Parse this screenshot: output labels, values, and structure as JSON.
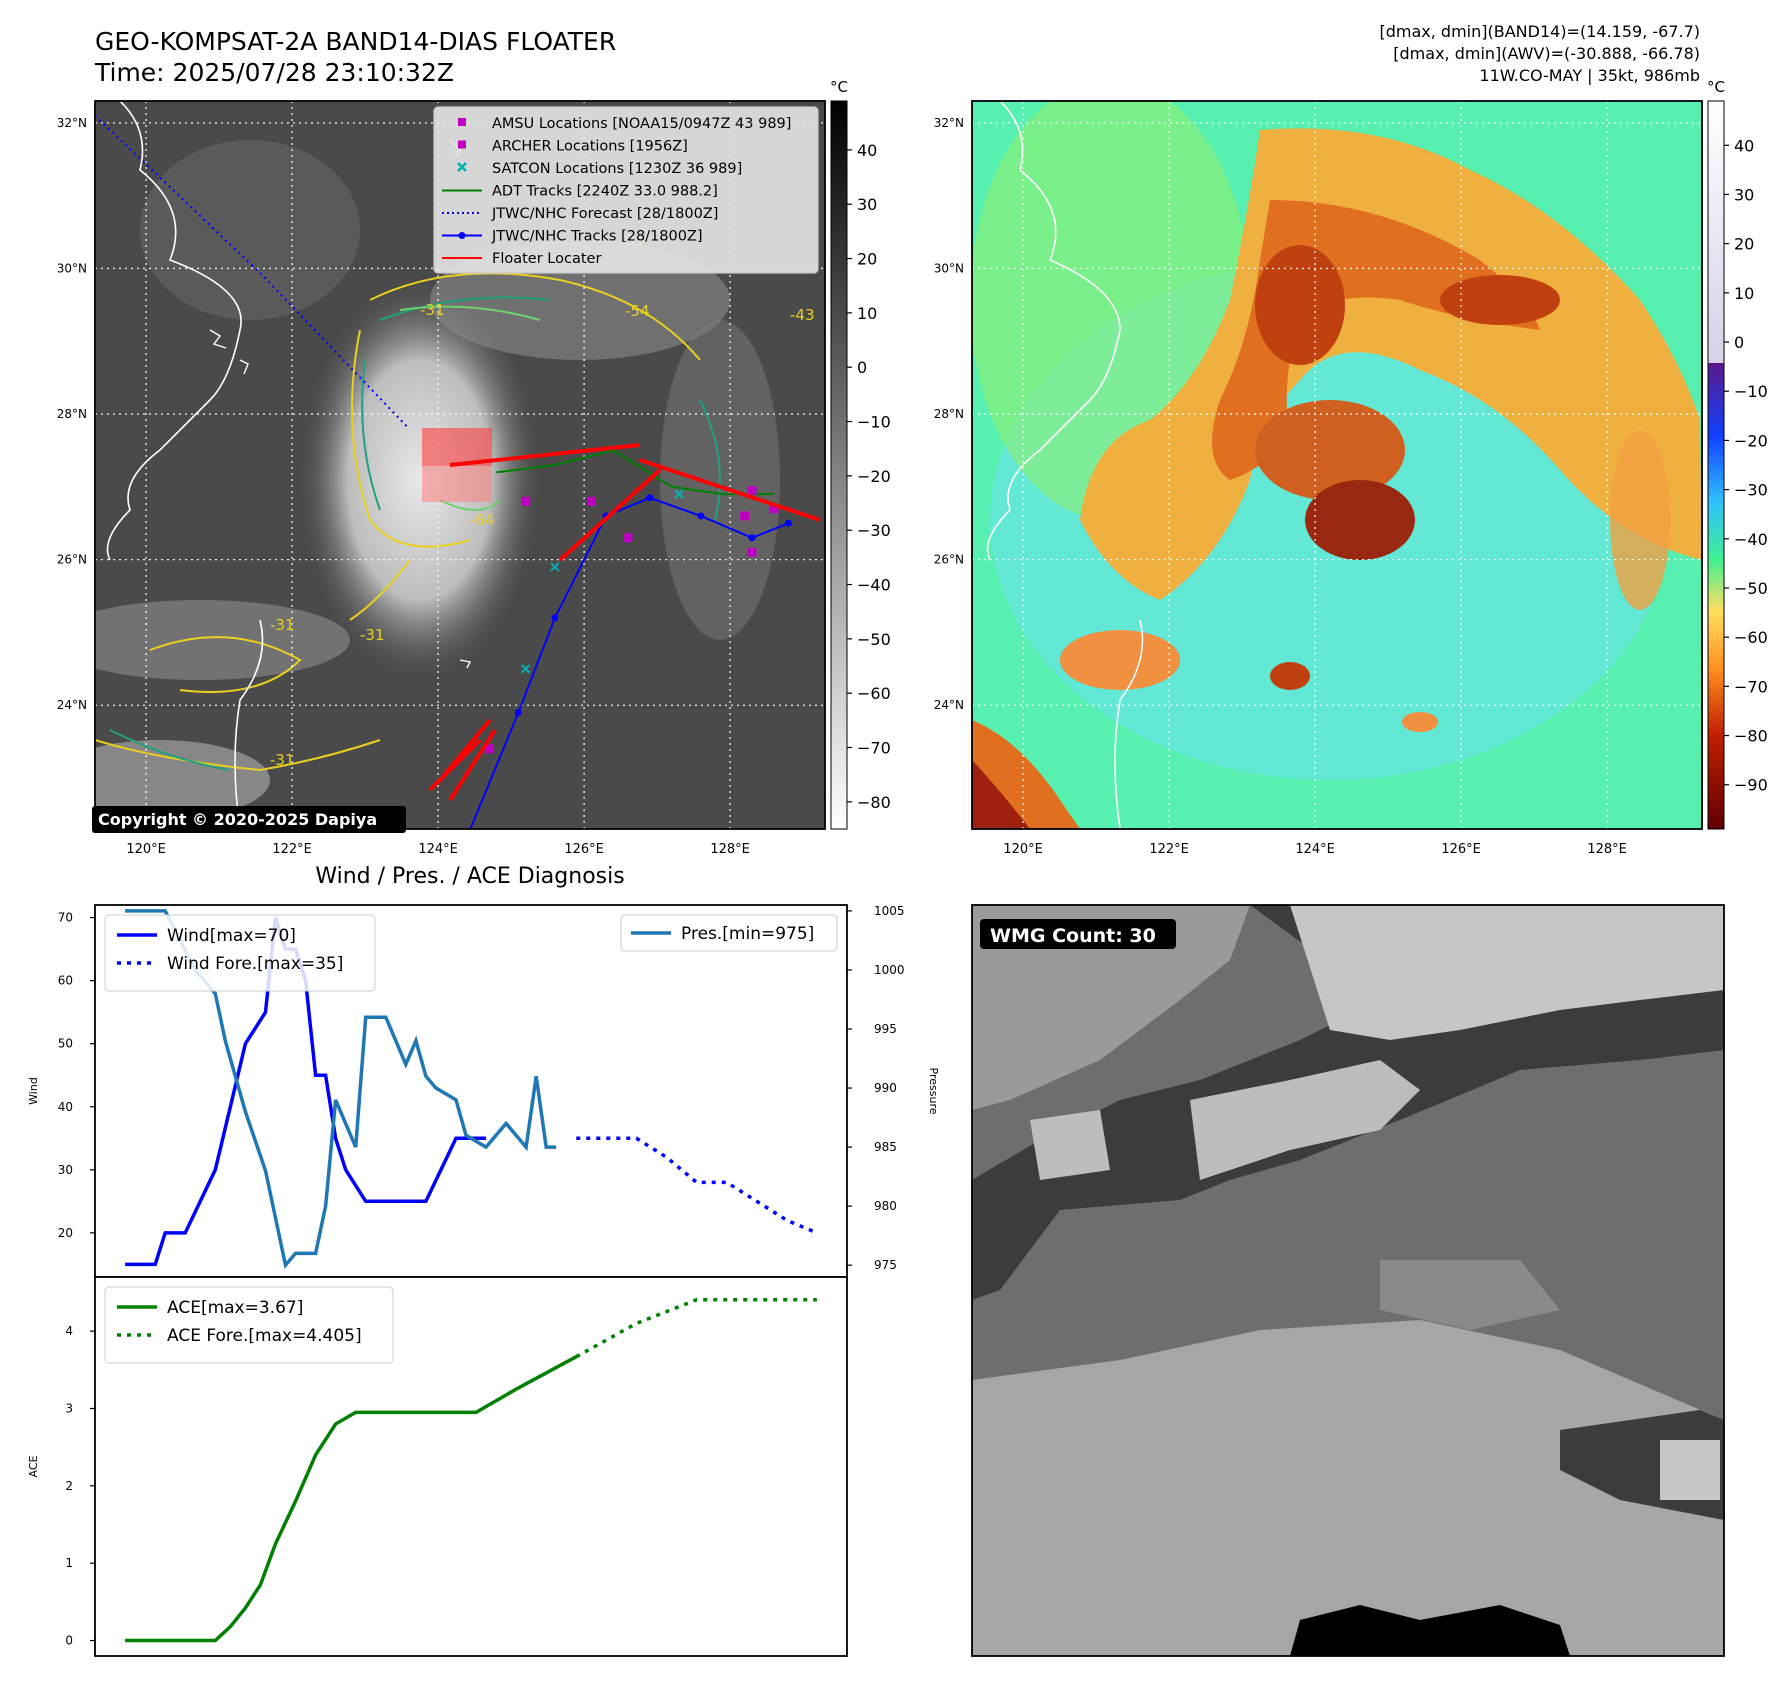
{
  "header": {
    "title_line1": "GEO-KOMPSAT-2A BAND14-DIAS FLOATER",
    "title_line2": "Time: 2025/07/28 23:10:32Z",
    "info_line1": "[dmax, dmin](BAND14)=(14.159, -67.7)",
    "info_line2": "[dmax, dmin](AWV)=(-30.888, -66.78)",
    "info_line3": "11W.CO-MAY | 35kt, 986mb"
  },
  "map": {
    "lat_labels": [
      "32°N",
      "30°N",
      "28°N",
      "26°N",
      "24°N"
    ],
    "lon_labels": [
      "120°E",
      "122°E",
      "124°E",
      "126°E",
      "128°E"
    ],
    "lat_values": [
      32,
      30,
      28,
      26,
      24
    ],
    "lon_values": [
      120,
      122,
      124,
      126,
      128
    ],
    "lat_range": [
      22.3,
      32.3
    ],
    "lon_range": [
      119.3,
      129.3
    ],
    "copyright": "Copyright © 2020-2025 Dapiya",
    "contour_labels": [
      "-31",
      "-54",
      "-64",
      "-43"
    ],
    "legend": [
      {
        "label": "AMSU Locations [NOAA15/0947Z 43 989]",
        "kind": "square",
        "color": "#c000c0"
      },
      {
        "label": "ARCHER Locations [1956Z]",
        "kind": "square",
        "color": "#c000c0"
      },
      {
        "label": "SATCON Locations [1230Z 36 989]",
        "kind": "x",
        "color": "#00b0b0"
      },
      {
        "label": "ADT Tracks [2240Z 33.0 988.2]",
        "kind": "line",
        "color": "#008000"
      },
      {
        "label": "JTWC/NHC Forecast [28/1800Z]",
        "kind": "dotted",
        "color": "#0000ff"
      },
      {
        "label": "JTWC/NHC Tracks [28/1800Z]",
        "kind": "linedot",
        "color": "#0000ff"
      },
      {
        "label": "Floater Locater",
        "kind": "line",
        "color": "#ff0000"
      }
    ],
    "jtwc_track": [
      [
        124.4,
        22.2
      ],
      [
        125.1,
        23.9
      ],
      [
        125.6,
        25.2
      ],
      [
        126.3,
        26.6
      ],
      [
        126.9,
        26.85
      ],
      [
        127.6,
        26.6
      ],
      [
        128.3,
        26.3
      ],
      [
        128.8,
        26.5
      ]
    ],
    "jtwc_forecast": [
      [
        119.3,
        32.1
      ],
      [
        121.6,
        29.9
      ],
      [
        123.6,
        27.8
      ]
    ],
    "adt_track": [
      [
        124.8,
        27.2
      ],
      [
        125.6,
        27.3
      ],
      [
        126.4,
        27.5
      ],
      [
        127.2,
        27.0
      ],
      [
        127.9,
        26.9
      ],
      [
        128.6,
        26.9
      ]
    ],
    "amsu_points": [
      [
        125.2,
        26.8
      ],
      [
        126.1,
        26.8
      ],
      [
        126.6,
        26.3
      ],
      [
        128.2,
        26.6
      ],
      [
        128.3,
        26.1
      ],
      [
        128.3,
        26.95
      ],
      [
        128.6,
        26.7
      ],
      [
        124.7,
        23.4
      ]
    ],
    "satcon_points": [
      [
        125.6,
        25.9
      ],
      [
        125.2,
        24.5
      ],
      [
        127.3,
        26.9
      ]
    ]
  },
  "colorbars": {
    "unit": "°C",
    "gray_ticks": [
      "40",
      "30",
      "20",
      "10",
      "0",
      "−10",
      "−20",
      "−30",
      "−40",
      "−50",
      "−60",
      "−70",
      "−80"
    ],
    "gray_tick_values": [
      40,
      30,
      20,
      10,
      0,
      -10,
      -20,
      -30,
      -40,
      -50,
      -60,
      -70,
      -80
    ],
    "gray_range": [
      -85,
      49
    ],
    "color_ticks": [
      "40",
      "30",
      "20",
      "10",
      "0",
      "−10",
      "−20",
      "−30",
      "−40",
      "−50",
      "−60",
      "−70",
      "−80",
      "−90"
    ],
    "color_tick_values": [
      40,
      30,
      20,
      10,
      0,
      -10,
      -20,
      -30,
      -40,
      -50,
      -60,
      -70,
      -80,
      -90
    ],
    "color_range": [
      -99,
      49
    ]
  },
  "wmg": {
    "label": "WMG Count: 30"
  },
  "chart_data": {
    "type": "line",
    "title": "Wind / Pres. / ACE Diagnosis",
    "panels": [
      {
        "ylabel": "Wind",
        "y2label": "Pressure",
        "ylim": [
          13,
          72
        ],
        "y2lim": [
          974,
          1005.5
        ],
        "yticks": [
          20,
          30,
          40,
          50,
          60,
          70
        ],
        "y2ticks": [
          975,
          980,
          985,
          990,
          995,
          1000,
          1005
        ],
        "xlim": [
          -3,
          72
        ],
        "series": [
          {
            "name": "Wind[max=70]",
            "color": "#0000ff",
            "style": "solid",
            "x": [
              0,
              3,
              4,
              6,
              9,
              12,
              14,
              15,
              16,
              17,
              18,
              19,
              20,
              21,
              22,
              24,
              26,
              27,
              30,
              33,
              36
            ],
            "y": [
              15,
              15,
              20,
              20,
              30,
              50,
              55,
              70,
              65,
              65,
              60,
              45,
              45,
              35,
              30,
              25,
              25,
              25,
              25,
              35,
              35
            ]
          },
          {
            "name": "Wind Fore.[max=35]",
            "color": "#0000ff",
            "style": "dotted",
            "x": [
              45,
              48,
              51,
              54,
              57,
              60,
              63,
              66,
              69
            ],
            "y": [
              35,
              35,
              35,
              32,
              28,
              28,
              25,
              22,
              20
            ]
          },
          {
            "name": "Pres.[min=975]",
            "color": "#1f77b4",
            "style": "solid",
            "axis": "right",
            "x": [
              0,
              4,
              7,
              9,
              10,
              12,
              14,
              16,
              17,
              19,
              20,
              21,
              23,
              24,
              26,
              28,
              29,
              30,
              31,
              33,
              34,
              36,
              38,
              39,
              40,
              41,
              42,
              43
            ],
            "y": [
              1005,
              1005,
              1000,
              998,
              994,
              988,
              983,
              975,
              976,
              976,
              980,
              989,
              985,
              996,
              996,
              992,
              994,
              991,
              990,
              989,
              986,
              985,
              987,
              986,
              985,
              991,
              985,
              985
            ]
          }
        ]
      },
      {
        "ylabel": "ACE",
        "ylim": [
          -0.2,
          4.7
        ],
        "yticks": [
          0,
          1,
          2,
          3,
          4
        ],
        "xlim": [
          -3,
          72
        ],
        "series": [
          {
            "name": "ACE[max=3.67]",
            "color": "#008000",
            "style": "solid",
            "x": [
              0,
              9,
              10.5,
              12,
              13.5,
              15,
              17,
              19,
              21,
              23,
              25,
              27,
              30,
              35,
              39,
              45
            ],
            "y": [
              0,
              0,
              0.18,
              0.42,
              0.72,
              1.25,
              1.8,
              2.4,
              2.8,
              2.95,
              2.95,
              2.95,
              2.95,
              2.95,
              3.25,
              3.67
            ]
          },
          {
            "name": "ACE Fore.[max=4.405]",
            "color": "#008000",
            "style": "dotted",
            "x": [
              45,
              51,
              57,
              63,
              69
            ],
            "y": [
              3.67,
              4.1,
              4.405,
              4.405,
              4.405
            ]
          }
        ]
      }
    ]
  }
}
